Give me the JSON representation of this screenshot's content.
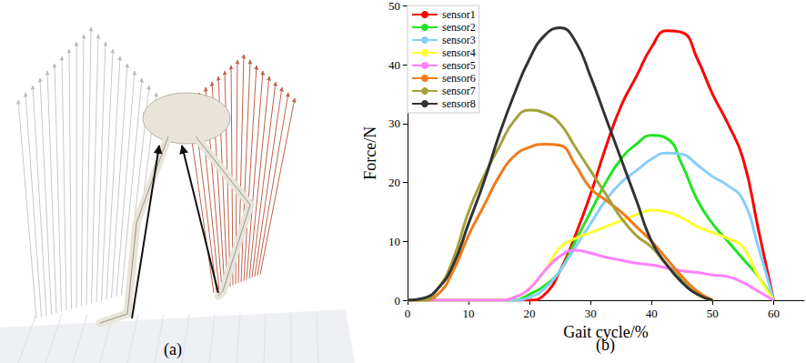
{
  "figure": {
    "panel_a_label": "(a)",
    "panel_b_label": "(b)"
  },
  "chart_data": {
    "type": "line",
    "xlabel": "Gait cycle/%",
    "ylabel": "Force/N",
    "x": [
      0,
      2.5,
      5,
      7.5,
      10,
      12.5,
      15,
      17.5,
      20,
      22.5,
      25,
      27.5,
      30,
      32.5,
      35,
      37.5,
      40,
      42.5,
      45,
      47.5,
      50,
      52.5,
      55,
      57.5,
      60
    ],
    "xlim": [
      0,
      65
    ],
    "xticks": [
      0,
      10,
      20,
      30,
      40,
      50,
      60
    ],
    "ylim": [
      0,
      50
    ],
    "yticks": [
      0,
      10,
      20,
      30,
      40,
      50
    ],
    "grid": false,
    "legend": "upper left",
    "series": [
      {
        "name": "sensor1",
        "color": "#ff0000",
        "values": [
          0,
          0,
          0,
          0,
          0,
          0,
          0,
          0,
          0,
          1,
          5,
          11,
          18,
          26,
          33,
          38,
          43,
          45.8,
          45.5,
          41,
          35,
          30,
          24,
          12,
          0
        ]
      },
      {
        "name": "sensor2",
        "color": "#22e322",
        "values": [
          0,
          0,
          0,
          0,
          0,
          0,
          0,
          0,
          1,
          2.5,
          5,
          10,
          15,
          20,
          24,
          26.5,
          28,
          27.5,
          23,
          17,
          13,
          10,
          7,
          4,
          0
        ]
      },
      {
        "name": "sensor3",
        "color": "#87cefa",
        "values": [
          0,
          0,
          0,
          0,
          0,
          0,
          0,
          0,
          0.5,
          2,
          5,
          9,
          13,
          17,
          20,
          22,
          24,
          25,
          24.8,
          23,
          21,
          19.5,
          17,
          9,
          0
        ]
      },
      {
        "name": "sensor4",
        "color": "#ffff33",
        "values": [
          0,
          0,
          0,
          0,
          0,
          0,
          0,
          0.5,
          2,
          5,
          9,
          10.5,
          11.5,
          12.5,
          13.5,
          14.5,
          15.3,
          15,
          14,
          12.5,
          11.5,
          10.5,
          9,
          4,
          0
        ]
      },
      {
        "name": "sensor5",
        "color": "#ff80ff",
        "values": [
          0,
          0,
          0,
          0,
          0,
          0,
          0,
          0.5,
          2,
          5,
          7.5,
          8.5,
          8,
          7.3,
          6.8,
          6.3,
          6,
          5.5,
          5,
          4.7,
          4.3,
          4,
          3,
          1.5,
          0
        ]
      },
      {
        "name": "sensor6",
        "color": "#f27a1a",
        "values": [
          0,
          0,
          1,
          5,
          11,
          16,
          21,
          24.5,
          26,
          26.5,
          26.3,
          23,
          19,
          17,
          15,
          12.5,
          10,
          7,
          4,
          1.5,
          0,
          null,
          null,
          null,
          null
        ]
      },
      {
        "name": "sensor7",
        "color": "#a3a33a",
        "values": [
          0,
          0,
          2,
          7,
          15,
          21,
          26,
          30.5,
          32.3,
          31.8,
          30,
          26,
          22,
          18,
          14,
          11,
          9,
          6,
          3.5,
          1,
          0,
          null,
          null,
          null,
          null
        ]
      },
      {
        "name": "sensor8",
        "color": "#333333",
        "values": [
          0,
          0.3,
          2,
          6,
          13,
          20,
          28,
          35,
          41,
          45,
          46.3,
          44,
          38,
          31,
          24,
          17,
          10,
          6,
          3,
          1,
          0,
          null,
          null,
          null,
          null
        ]
      }
    ]
  }
}
